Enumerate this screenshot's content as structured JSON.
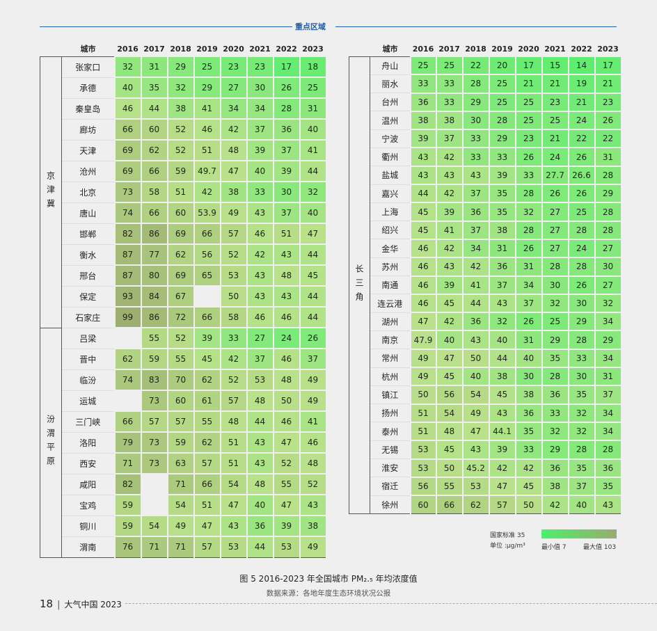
{
  "header": {
    "section_title": "重点区域"
  },
  "columns": {
    "city": "城市",
    "years": [
      "2016",
      "2017",
      "2018",
      "2019",
      "2020",
      "2021",
      "2022",
      "2023"
    ]
  },
  "left_table": {
    "groups": [
      {
        "region": "京津冀",
        "rows": [
          {
            "city": "张家口",
            "values": [
              32,
              31,
              29,
              25,
              23,
              23,
              17,
              18
            ]
          },
          {
            "city": "承德",
            "values": [
              40,
              35,
              32,
              29,
              27,
              30,
              26,
              25
            ]
          },
          {
            "city": "秦皇岛",
            "values": [
              46,
              44,
              38,
              41,
              34,
              34,
              28,
              31
            ]
          },
          {
            "city": "廊坊",
            "values": [
              66,
              60,
              52,
              46,
              42,
              37,
              36,
              40
            ]
          },
          {
            "city": "天津",
            "values": [
              69,
              62,
              52,
              51,
              48,
              39,
              37,
              41
            ]
          },
          {
            "city": "沧州",
            "values": [
              69,
              66,
              59,
              49.7,
              47,
              40,
              39,
              44
            ]
          },
          {
            "city": "北京",
            "values": [
              73,
              58,
              51,
              42,
              38,
              33,
              30,
              32
            ]
          },
          {
            "city": "唐山",
            "values": [
              74,
              66,
              60,
              53.9,
              49,
              43,
              37,
              40
            ]
          },
          {
            "city": "邯郸",
            "values": [
              82,
              86,
              69,
              66,
              57,
              46,
              51,
              47
            ]
          },
          {
            "city": "衡水",
            "values": [
              87,
              77,
              62,
              56,
              52,
              42,
              43,
              44
            ]
          },
          {
            "city": "邢台",
            "values": [
              87,
              80,
              69,
              65,
              53,
              43,
              48,
              45
            ]
          },
          {
            "city": "保定",
            "values": [
              93,
              84,
              67,
              null,
              50,
              43,
              43,
              44
            ]
          },
          {
            "city": "石家庄",
            "values": [
              99,
              86,
              72,
              66,
              58,
              46,
              46,
              44
            ]
          }
        ]
      },
      {
        "region": "汾渭平原",
        "rows": [
          {
            "city": "吕梁",
            "values": [
              null,
              55,
              52,
              39,
              33,
              27,
              24,
              26
            ]
          },
          {
            "city": "晋中",
            "values": [
              62,
              59,
              55,
              45,
              42,
              37,
              46,
              37
            ]
          },
          {
            "city": "临汾",
            "values": [
              74,
              83,
              70,
              62,
              52,
              53,
              48,
              49
            ]
          },
          {
            "city": "运城",
            "values": [
              null,
              73,
              60,
              61,
              57,
              48,
              50,
              49
            ]
          },
          {
            "city": "三门峡",
            "values": [
              66,
              57,
              57,
              55,
              48,
              44,
              46,
              41
            ]
          },
          {
            "city": "洛阳",
            "values": [
              79,
              73,
              59,
              62,
              51,
              43,
              47,
              46
            ]
          },
          {
            "city": "西安",
            "values": [
              71,
              73,
              63,
              57,
              51,
              43,
              52,
              48
            ]
          },
          {
            "city": "咸阳",
            "values": [
              82,
              null,
              71,
              66,
              54,
              48,
              55,
              52
            ]
          },
          {
            "city": "宝鸡",
            "values": [
              59,
              null,
              54,
              51,
              47,
              40,
              47,
              43
            ]
          },
          {
            "city": "铜川",
            "values": [
              59,
              54,
              49,
              47,
              43,
              36,
              39,
              38
            ]
          },
          {
            "city": "渭南",
            "values": [
              76,
              71,
              71,
              57,
              53,
              44,
              53,
              49
            ]
          }
        ]
      }
    ]
  },
  "right_table": {
    "groups": [
      {
        "region": "长三角",
        "rows": [
          {
            "city": "舟山",
            "values": [
              25,
              25,
              22,
              20,
              17,
              15,
              14,
              17
            ]
          },
          {
            "city": "丽水",
            "values": [
              33,
              33,
              28,
              25,
              21,
              21,
              19,
              21
            ]
          },
          {
            "city": "台州",
            "values": [
              36,
              33,
              29,
              25,
              25,
              23,
              21,
              23
            ]
          },
          {
            "city": "温州",
            "values": [
              38,
              38,
              30,
              28,
              25,
              25,
              24,
              26
            ]
          },
          {
            "city": "宁波",
            "values": [
              39,
              37,
              33,
              29,
              23,
              21,
              22,
              22
            ]
          },
          {
            "city": "衢州",
            "values": [
              43,
              42,
              33,
              33,
              26,
              24,
              26,
              31
            ]
          },
          {
            "city": "盐城",
            "values": [
              43,
              43,
              43,
              39,
              33,
              27.7,
              26.6,
              28
            ]
          },
          {
            "city": "嘉兴",
            "values": [
              44,
              42,
              37,
              35,
              28,
              26,
              26,
              29
            ]
          },
          {
            "city": "上海",
            "values": [
              45,
              39,
              36,
              35,
              32,
              27,
              25,
              28
            ]
          },
          {
            "city": "绍兴",
            "values": [
              45,
              41,
              37,
              38,
              28,
              27,
              28,
              28
            ]
          },
          {
            "city": "金华",
            "values": [
              46,
              42,
              34,
              31,
              26,
              27,
              24,
              27
            ]
          },
          {
            "city": "苏州",
            "values": [
              46,
              43,
              42,
              36,
              31,
              28,
              28,
              30
            ]
          },
          {
            "city": "南通",
            "values": [
              46,
              39,
              41,
              37,
              34,
              30,
              26,
              27
            ]
          },
          {
            "city": "连云港",
            "values": [
              46,
              45,
              44,
              43,
              37,
              32,
              30,
              32
            ]
          },
          {
            "city": "湖州",
            "values": [
              47,
              42,
              36,
              32,
              26,
              25,
              29,
              34
            ]
          },
          {
            "city": "南京",
            "values": [
              47.9,
              40,
              43,
              40,
              31,
              29,
              28,
              29
            ]
          },
          {
            "city": "常州",
            "values": [
              49,
              47,
              50,
              44,
              40,
              35,
              33,
              34
            ]
          },
          {
            "city": "杭州",
            "values": [
              49,
              45,
              40,
              38,
              30,
              28,
              30,
              31
            ]
          },
          {
            "city": "镇江",
            "values": [
              50,
              56,
              54,
              45,
              38,
              36,
              35,
              37
            ]
          },
          {
            "city": "扬州",
            "values": [
              51,
              54,
              49,
              43,
              36,
              33,
              32,
              34
            ]
          },
          {
            "city": "泰州",
            "values": [
              51,
              48,
              47,
              44.1,
              35,
              32,
              32,
              34
            ]
          },
          {
            "city": "无锡",
            "values": [
              53,
              45,
              43,
              39,
              33,
              29,
              28,
              28
            ]
          },
          {
            "city": "淮安",
            "values": [
              53,
              50,
              45.2,
              42,
              42,
              36,
              35,
              36
            ]
          },
          {
            "city": "宿迁",
            "values": [
              56,
              55,
              53,
              47,
              45,
              38,
              37,
              35
            ]
          },
          {
            "city": "徐州",
            "values": [
              60,
              66,
              62,
              57,
              50,
              42,
              40,
              43
            ]
          }
        ]
      }
    ]
  },
  "legend": {
    "standard_label": "国家标准 35",
    "unit_label": "单位 :μg/m³",
    "min_label": "最小值 7",
    "max_label": "最大值 103",
    "min": 7,
    "max": 103,
    "standard": 35,
    "color_min": "#4cf06b",
    "color_mid": "#b9e18a",
    "color_max": "#9aab6f"
  },
  "caption": "图 5  2016-2023 年全国城市 PM₂.₅ 年均浓度值",
  "source": "数据来源：各地年度生态环境状况公报",
  "footer": {
    "page": "18",
    "publication": "大气中国 2023"
  }
}
